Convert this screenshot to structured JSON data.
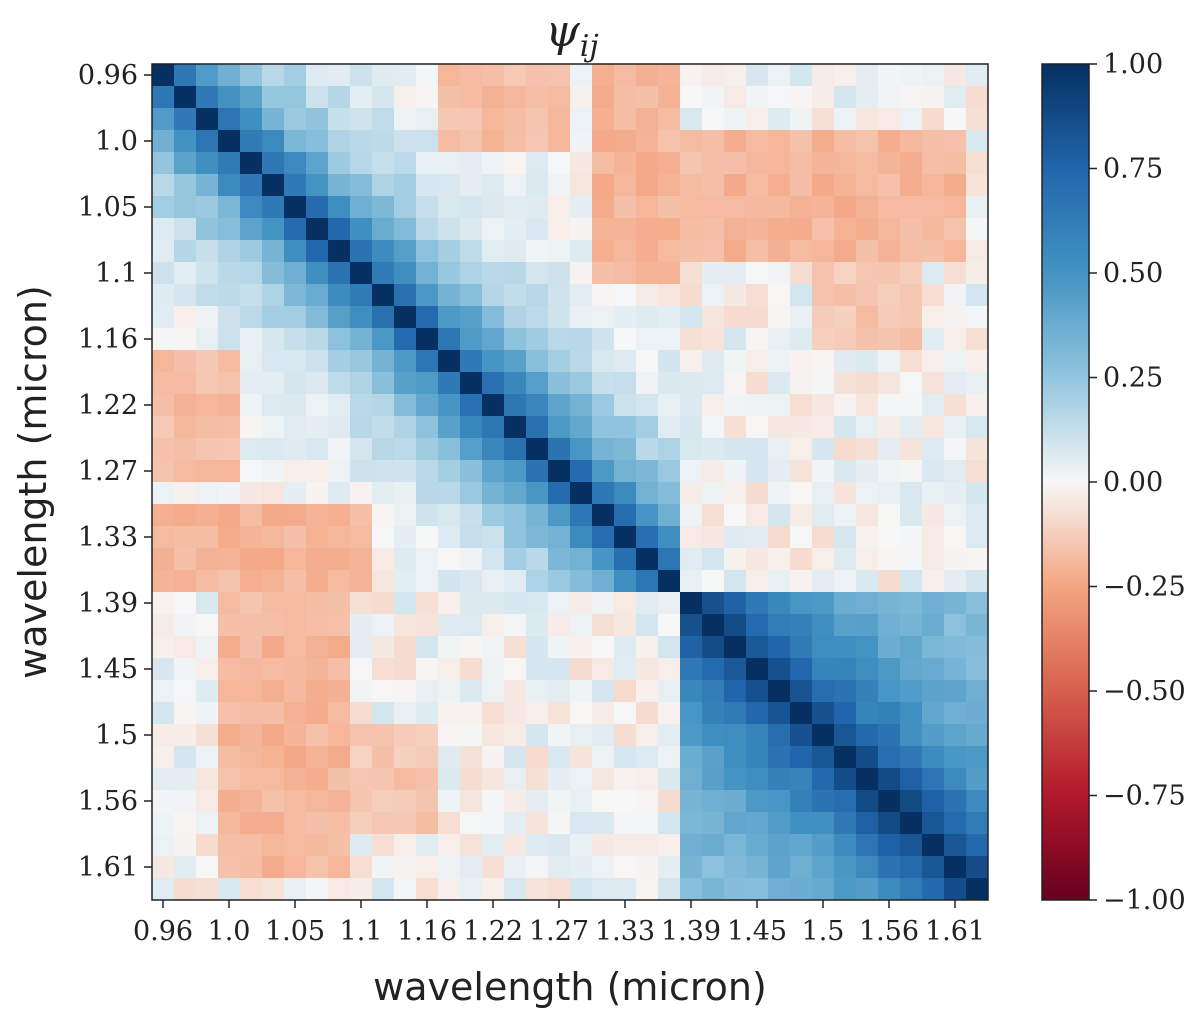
{
  "chart_data": {
    "type": "heatmap",
    "title": "ψ",
    "title_subscript": "ij",
    "xlabel": "wavelength (micron)",
    "ylabel": "wavelength (micron)",
    "n_bins": 38,
    "tick_labels": [
      "0.96",
      "1.0",
      "1.05",
      "1.1",
      "1.16",
      "1.22",
      "1.27",
      "1.33",
      "1.39",
      "1.45",
      "1.5",
      "1.56",
      "1.61"
    ],
    "tick_bin_indices": [
      0,
      3,
      6,
      9,
      12,
      15,
      18,
      21,
      24,
      27,
      30,
      33,
      36
    ],
    "colormap": "RdBu",
    "vmin": -1.0,
    "vmax": 1.0,
    "colorbar_ticks": [
      {
        "value": 1.0,
        "label": "1.00"
      },
      {
        "value": 0.75,
        "label": "0.75"
      },
      {
        "value": 0.5,
        "label": "0.50"
      },
      {
        "value": 0.25,
        "label": "0.25"
      },
      {
        "value": 0.0,
        "label": "0.00"
      },
      {
        "value": -0.25,
        "label": "−0.25"
      },
      {
        "value": -0.5,
        "label": "−0.50"
      },
      {
        "value": -0.75,
        "label": "−0.75"
      },
      {
        "value": -1.0,
        "label": "−1.00"
      }
    ],
    "diagonal_value": 1.0,
    "block_structure": {
      "block_boundary_bin": 24,
      "block1_correlation_length_bins": 3.5,
      "block2_correlation_length_bins": 4.5,
      "block2_far_floor": 0.25,
      "cross_block_mean": 0.0
    },
    "notes_cells": [
      {
        "i_from": 0,
        "i_to": 9,
        "j_from": 20,
        "j_to": 23,
        "value": -0.2
      },
      {
        "i_from": 3,
        "i_to": 8,
        "j_from": 26,
        "j_to": 36,
        "value": -0.2
      },
      {
        "i_from": 13,
        "i_to": 18,
        "j_from": 0,
        "j_to": 3,
        "value": -0.18
      },
      {
        "i_from": 23,
        "i_to": 33,
        "j_from": 3,
        "j_to": 8,
        "value": -0.15
      },
      {
        "i_from": 30,
        "i_to": 34,
        "j_from": 6,
        "j_to": 12,
        "value": -0.15
      }
    ]
  }
}
